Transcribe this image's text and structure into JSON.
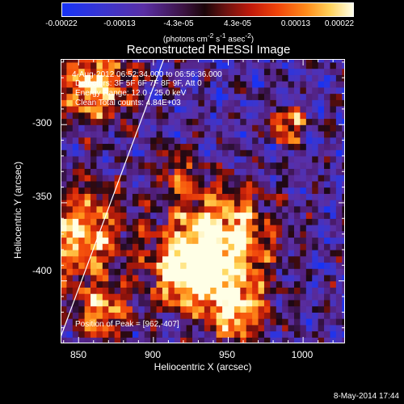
{
  "colorbar": {
    "ticks": [
      "-0.00022",
      "-0.00013",
      "-4.3e-05",
      "4.3e-05",
      "0.00013",
      "0.00022"
    ],
    "units_main": "(photons cm",
    "units_sup1": "-2",
    "units_mid": " s",
    "units_sup2": "-1",
    "units_end": " asec",
    "units_sup3": "-2",
    "units_close": ")"
  },
  "plot": {
    "title": "Reconstructed RHESSI Image",
    "annotations": {
      "time_range": "4-Aug-2012 06:52:34.000 to 06:56:36.000",
      "detectors": "Detectors: 3F 5F 6F 7F 8F 9F, Att 0",
      "energy": "Energy Range: 12.0 - 25.0 keV",
      "clean": "Clean    Total counts: 4.84E+03",
      "peak": "Position of Peak = [962,-407]"
    },
    "footer_date": "8-May-2014 17:44"
  },
  "chart_data": {
    "type": "heatmap",
    "title": "Reconstructed RHESSI Image",
    "xlabel": "Heliocentric X (arcsec)",
    "ylabel": "Heliocentric Y (arcsec)",
    "xlim": [
      838,
      1028
    ],
    "ylim": [
      -440,
      -258
    ],
    "xticks": [
      850,
      900,
      950,
      1000
    ],
    "yticks": [
      -300,
      -350,
      -400
    ],
    "colorbar_range": [
      -0.00022,
      0.00022
    ],
    "colormap": "blue-purple-black-red-yellow-white",
    "limb_line": [
      [
        838,
        -436
      ],
      [
        907,
        -258
      ]
    ],
    "peak_position": [
      962,
      -407
    ],
    "bright_sources": [
      {
        "x": 945,
        "y": -375,
        "r": 34,
        "v": 1.0
      },
      {
        "x": 920,
        "y": -395,
        "r": 22,
        "v": 0.85
      },
      {
        "x": 955,
        "y": -420,
        "r": 20,
        "v": 0.8
      },
      {
        "x": 862,
        "y": -275,
        "r": 24,
        "v": 0.9
      },
      {
        "x": 850,
        "y": -370,
        "r": 30,
        "v": 0.85
      },
      {
        "x": 865,
        "y": -420,
        "r": 18,
        "v": 0.7
      },
      {
        "x": 990,
        "y": -300,
        "r": 8,
        "v": 0.6
      },
      {
        "x": 915,
        "y": -330,
        "r": 16,
        "v": 0.4
      }
    ]
  }
}
